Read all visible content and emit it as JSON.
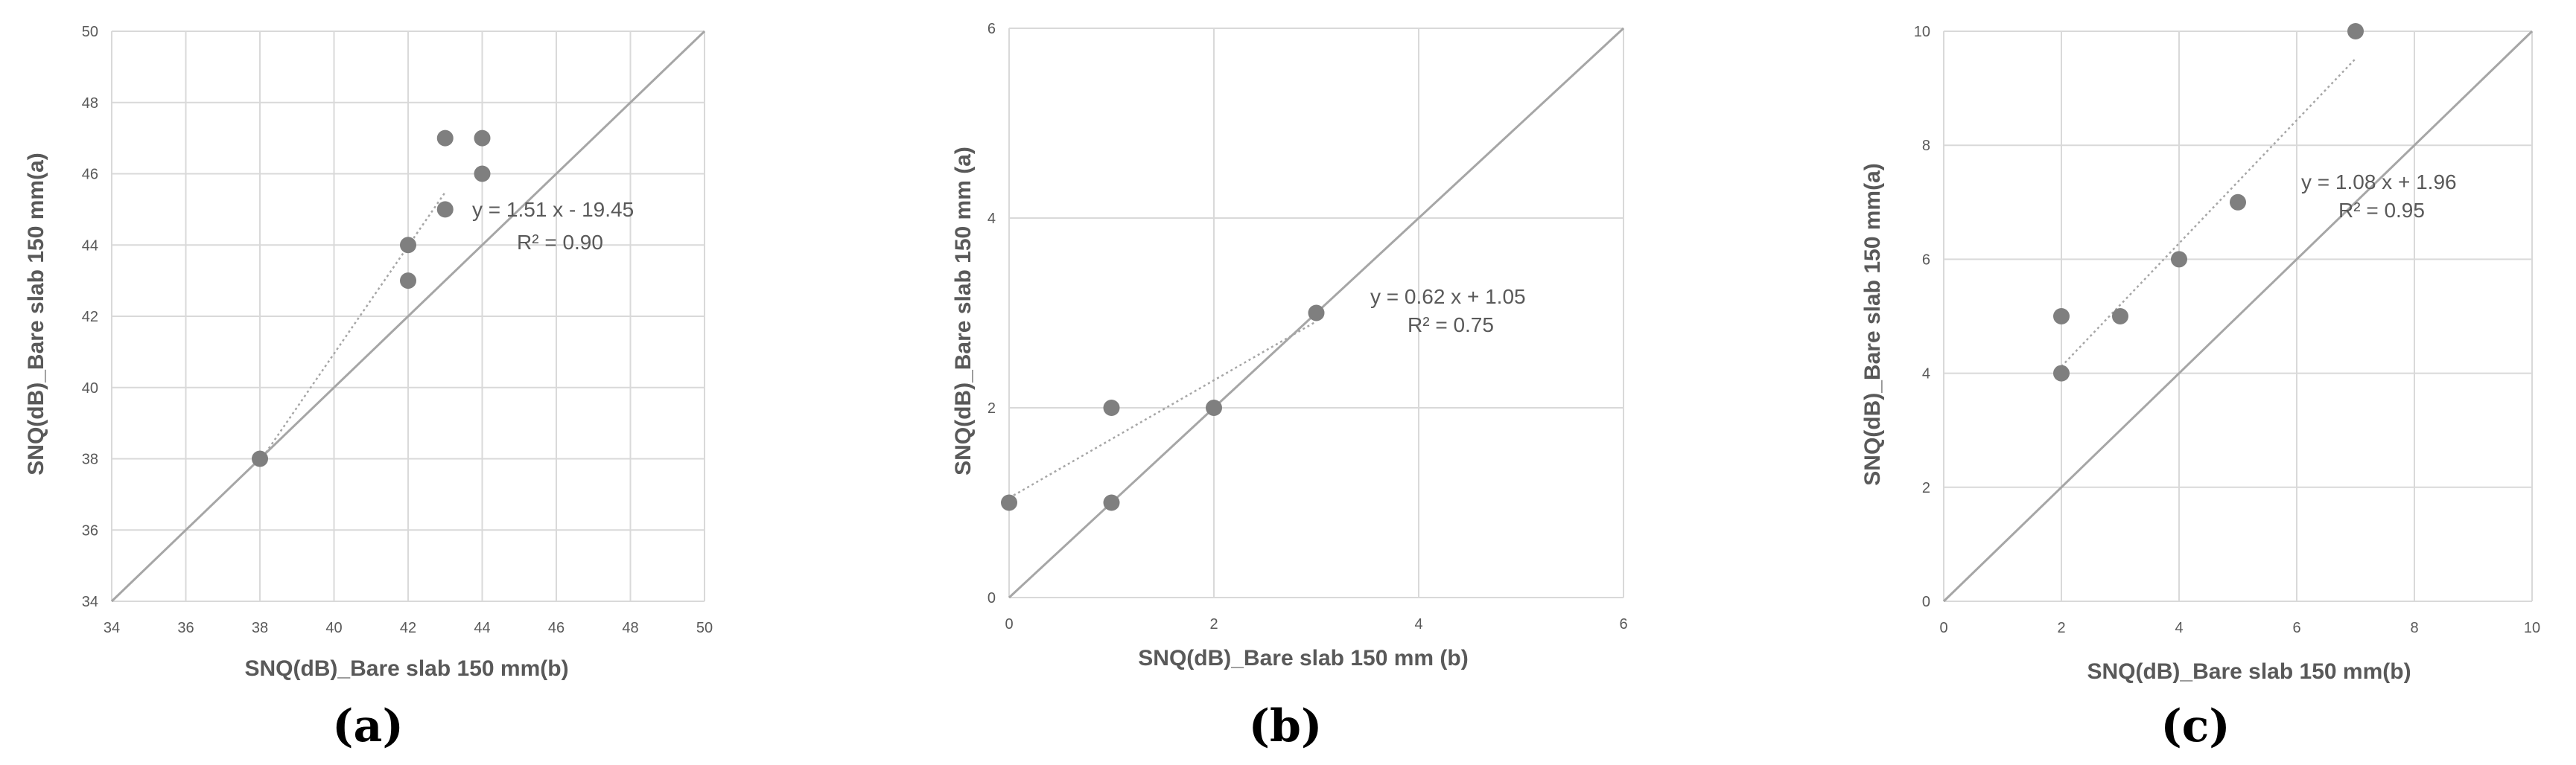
{
  "figure": {
    "background": "#ffffff"
  },
  "colors": {
    "point": "#7f7f7f",
    "line": "#a6a6a6",
    "trend": "#a6a6a6",
    "grid": "#d9d9d9",
    "text": "#595959"
  },
  "chart_data": [
    {
      "type": "scatter",
      "panel_label": "(a)",
      "xlabel": "SNQ(dB)_Bare slab 150 mm(b)",
      "ylabel": "SNQ(dB)_Bare slab 150 mm(a)",
      "xlim": [
        34,
        50
      ],
      "ylim": [
        34,
        50
      ],
      "xticks": [
        34,
        36,
        38,
        40,
        42,
        44,
        46,
        48,
        50
      ],
      "yticks": [
        34,
        36,
        38,
        40,
        42,
        44,
        46,
        48,
        50
      ],
      "grid": true,
      "series": [
        {
          "x": [
            38,
            42,
            42,
            43,
            43,
            44,
            44
          ],
          "y": [
            38,
            44,
            43,
            47,
            45,
            47,
            46
          ]
        }
      ],
      "reference_line": {
        "x": [
          34,
          50
        ],
        "y": [
          34,
          50
        ]
      },
      "trendline": {
        "slope": 1.51,
        "intercept": -19.45,
        "x_range": [
          38,
          43
        ]
      },
      "equation": "y = 1.51 x - 19.45",
      "r2": "R² = 0.90"
    },
    {
      "type": "scatter",
      "panel_label": "(b)",
      "xlabel": "SNQ(dB)_Bare slab 150 mm (b)",
      "ylabel": "SNQ(dB)_Bare slab 150 mm (a)",
      "xlim": [
        0,
        6
      ],
      "ylim": [
        0,
        6
      ],
      "xticks": [
        0,
        2,
        4,
        6
      ],
      "yticks": [
        0,
        2,
        4,
        6
      ],
      "grid": true,
      "series": [
        {
          "x": [
            0,
            1,
            1,
            2,
            3
          ],
          "y": [
            1,
            2,
            1,
            2,
            3
          ]
        }
      ],
      "reference_line": {
        "x": [
          0,
          6
        ],
        "y": [
          0,
          6
        ]
      },
      "trendline": {
        "slope": 0.62,
        "intercept": 1.05,
        "x_range": [
          0,
          3
        ]
      },
      "equation": "y = 0.62 x + 1.05",
      "r2": "R² = 0.75"
    },
    {
      "type": "scatter",
      "panel_label": "(c)",
      "xlabel": "SNQ(dB)_Bare slab 150 mm(b)",
      "ylabel": "SNQ(dB)_Bare slab 150 mm(a)",
      "xlim": [
        0,
        10
      ],
      "ylim": [
        0,
        10
      ],
      "xticks": [
        0,
        2,
        4,
        6,
        8,
        10
      ],
      "yticks": [
        0,
        2,
        4,
        6,
        8,
        10
      ],
      "grid": true,
      "series": [
        {
          "x": [
            2,
            2,
            3,
            4,
            5,
            7
          ],
          "y": [
            5,
            4,
            5,
            6,
            7,
            10
          ]
        }
      ],
      "reference_line": {
        "x": [
          0,
          10
        ],
        "y": [
          0,
          10
        ]
      },
      "trendline": {
        "slope": 1.08,
        "intercept": 1.96,
        "x_range": [
          2,
          7
        ]
      },
      "equation": "y = 1.08 x + 1.96",
      "r2": "R² = 0.95"
    }
  ]
}
